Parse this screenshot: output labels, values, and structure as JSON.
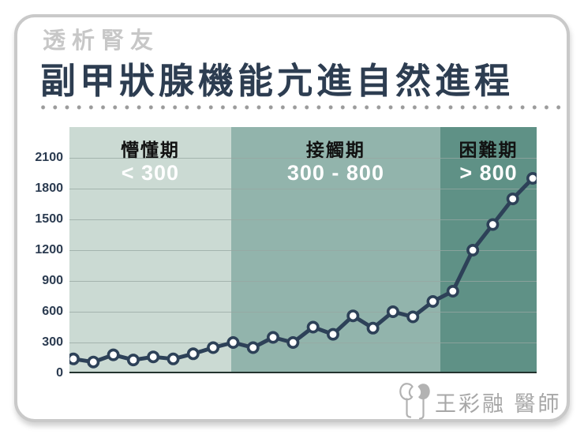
{
  "page": {
    "subtitle": "透析腎友",
    "title": "副甲狀腺機能亢進自然進程"
  },
  "footer": {
    "doctor": "王彩融 醫師",
    "logo": "kidney-pair-icon"
  },
  "colors": {
    "title_dark": "#2d3d51",
    "subtitle_gray": "#c7c7c7",
    "card_border": "#c9c9c9",
    "separator_dot": "#9c9c9c",
    "gridline": "#97a7a2",
    "axis": "#23332e",
    "footer_gray": "#a7a7a7"
  },
  "chart_data": {
    "type": "line",
    "title": "副甲狀腺機能亢進自然進程",
    "values": [
      140,
      110,
      180,
      130,
      160,
      140,
      190,
      250,
      300,
      250,
      350,
      300,
      450,
      380,
      560,
      440,
      600,
      550,
      700,
      800,
      1200,
      1450,
      1700,
      1900
    ],
    "x_labels_visible": false,
    "y_ticks": [
      2100,
      1800,
      1500,
      1200,
      900,
      600,
      300,
      0
    ],
    "ylim": [
      0,
      2400
    ],
    "ylabel": "",
    "xlabel": "",
    "grid": true,
    "legend": "none",
    "line_color": "#2d4158",
    "marker": "circle-white-fill",
    "zones": [
      {
        "label": "懵懂期",
        "range": "< 300",
        "color": "#cbdad3",
        "span_frac": [
          0,
          0.346
        ]
      },
      {
        "label": "接觸期",
        "range": "300 - 800",
        "color": "#92b4ac",
        "span_frac": [
          0.346,
          0.794
        ]
      },
      {
        "label": "困難期",
        "range": "> 800",
        "color": "#5f9186",
        "span_frac": [
          0.794,
          1
        ]
      }
    ]
  }
}
